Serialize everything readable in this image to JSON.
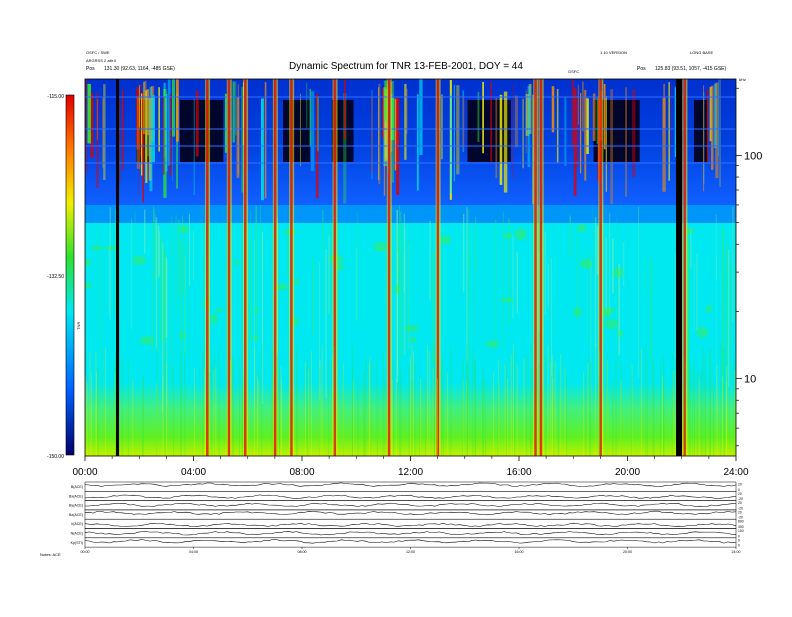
{
  "chart_data": [
    {
      "type": "heatmap",
      "title": "Dynamic Spectrum for TNR 13-FEB-2001, DOY = 44",
      "header_left": [
        "GSFC / SWE",
        "ARGRSS 2 attr.0",
        "Pos"
      ],
      "header_left_pos": "131.30 (92.63, 1164, -485 GSE)",
      "header_right": [
        "1.10 VERSION",
        "LONG BASE",
        "Pos"
      ],
      "header_right_pos": "125.83 (93.51, 1057, -415 GSE)",
      "header_mid": "GSFC",
      "colorbar": {
        "ticks": [
          "-115.00",
          "-132.50",
          "-150.00"
        ],
        "label": "TNR",
        "range": [
          -150,
          -115
        ]
      },
      "y_axis": {
        "scale": "log",
        "ticks": [
          "100",
          "10"
        ],
        "unit": "kHz"
      },
      "x_axis": {
        "ticks": [
          "00:00",
          "04:00",
          "08:00",
          "12:00",
          "16:00",
          "20:00",
          "24:00"
        ],
        "range_hours": [
          0,
          24
        ]
      },
      "data_gaps_hours": [
        1.2,
        21.9
      ],
      "bursts_hours": [
        4.5,
        5.3,
        5.9,
        7.0,
        7.6,
        9.2,
        11.2,
        13.0,
        16.6,
        16.8,
        19.0,
        22.1
      ]
    },
    {
      "type": "line",
      "panels": [
        {
          "label": "B(ACE)",
          "right_ticks": [
            "20",
            "0"
          ]
        },
        {
          "label": "Bx(ACE)",
          "right_ticks": [
            "20",
            "-20"
          ]
        },
        {
          "label": "By(ACE)",
          "right_ticks": [
            "20",
            "-20"
          ]
        },
        {
          "label": "Bz(ACE)",
          "right_ticks": [
            "20",
            "-20"
          ]
        },
        {
          "label": "V(ACE)",
          "right_ticks": [
            "800",
            "300"
          ]
        },
        {
          "label": "N(ACE)",
          "right_ticks": [
            "100",
            "0"
          ]
        },
        {
          "label": "Kp(STI)",
          "right_ticks": [
            "9",
            "0"
          ]
        }
      ],
      "x_axis": {
        "ticks": [
          "00:00",
          "04:00",
          "08:00",
          "12:00",
          "16:00",
          "20:00",
          "24:00"
        ]
      },
      "footer_note": "Notes: ACE"
    }
  ],
  "colors": {
    "spectrum": [
      "#000010",
      "#00007a",
      "#0050ff",
      "#00e8f0",
      "#30f030",
      "#f0f000",
      "#ff9000",
      "#e00000"
    ],
    "background": "#00e8f0"
  }
}
